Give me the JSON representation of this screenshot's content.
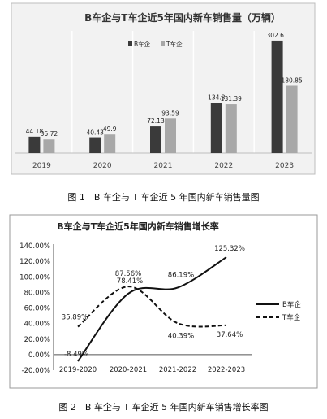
{
  "figure1": {
    "caption": "图 1　B 车企与 T 车企近 5 年国内新车销售量图",
    "chart_data": {
      "type": "bar",
      "title": "B车企与T车企近5年国内新车销售量（万辆）",
      "categories": [
        "2019",
        "2020",
        "2021",
        "2022",
        "2023"
      ],
      "series": [
        {
          "name": "B车企",
          "color": "#3a3a3a",
          "values": [
            44.18,
            40.43,
            72.13,
            134.3,
            302.61
          ]
        },
        {
          "name": "T车企",
          "color": "#a8a8a8",
          "values": [
            36.72,
            49.9,
            93.59,
            131.39,
            180.85
          ]
        }
      ],
      "data_labels": [
        [
          "44.18",
          "40.43",
          "72.13",
          "134.3",
          "302.61"
        ],
        [
          "36.72",
          "49.9",
          "93.59",
          "131.39",
          "180.85"
        ]
      ],
      "ylim": [
        0,
        320
      ],
      "grid": false,
      "legend_position": "top-right"
    }
  },
  "figure2": {
    "caption": "图 2　B 车企与 T 车企近 5 年国内新车销售增长率图",
    "chart_data": {
      "type": "line",
      "title": "B车企与T车企近5年国内新车销售增长率",
      "categories": [
        "2019-2020",
        "2020-2021",
        "2021-2022",
        "2022-2023"
      ],
      "series": [
        {
          "name": "B车企",
          "style": "solid",
          "color": "#111111",
          "values": [
            -8.49,
            78.41,
            86.19,
            125.32
          ],
          "labels": [
            "-8.49%",
            "78.41%",
            "86.19%",
            "125.32%"
          ]
        },
        {
          "name": "T车企",
          "style": "dashed",
          "color": "#111111",
          "values": [
            35.89,
            87.56,
            40.39,
            37.64
          ],
          "labels": [
            "35.89%",
            "87.56%",
            "40.39%",
            "37.64%"
          ]
        }
      ],
      "yticks": [
        "140.00%",
        "120.00%",
        "100.00%",
        "80.00%",
        "60.00%",
        "40.00%",
        "20.00%",
        "0.00%",
        "-20.00%"
      ],
      "ylim": [
        -20,
        140
      ],
      "grid": false,
      "legend_position": "right"
    }
  }
}
